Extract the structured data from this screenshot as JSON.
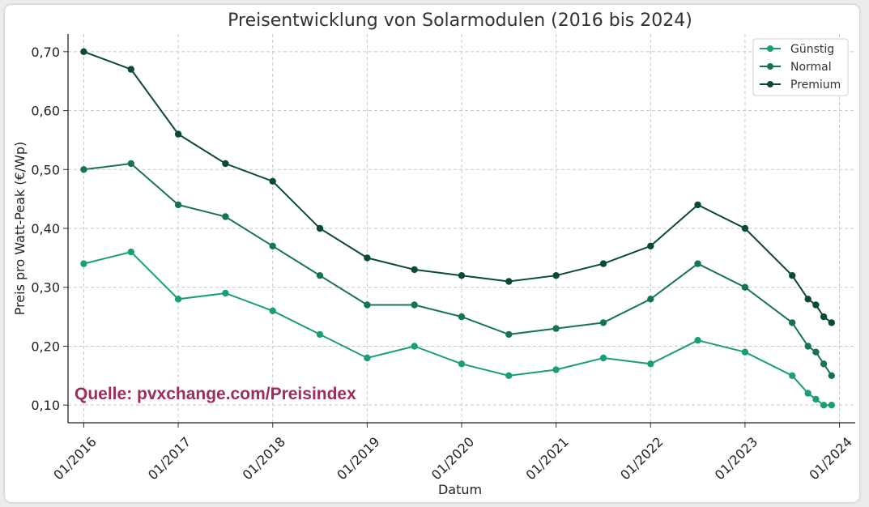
{
  "chart_data": {
    "type": "line",
    "title": "Preisentwicklung von Solarmodulen (2016 bis 2024)",
    "xlabel": "Datum",
    "ylabel": "Preis pro Watt-Peak (€/Wp)",
    "ylim": [
      0.07,
      0.73
    ],
    "yticks": [
      "0,10",
      "0,20",
      "0,30",
      "0,40",
      "0,50",
      "0,60",
      "0,70"
    ],
    "ytick_values": [
      0.1,
      0.2,
      0.3,
      0.4,
      0.5,
      0.6,
      0.7
    ],
    "xticks": [
      "01/2016",
      "01/2017",
      "01/2018",
      "01/2019",
      "01/2020",
      "01/2021",
      "01/2022",
      "01/2023",
      "01/2024"
    ],
    "xtick_values": [
      "2016-01",
      "2017-01",
      "2018-01",
      "2019-01",
      "2020-01",
      "2021-01",
      "2022-01",
      "2023-01",
      "2024-01"
    ],
    "xlim": [
      "2015-11",
      "2024-03"
    ],
    "x": [
      "2016-01",
      "2016-07",
      "2017-01",
      "2017-07",
      "2018-01",
      "2018-07",
      "2019-01",
      "2019-07",
      "2020-01",
      "2020-07",
      "2021-01",
      "2021-07",
      "2022-01",
      "2022-07",
      "2023-01",
      "2023-07",
      "2023-09",
      "2023-10",
      "2023-11",
      "2023-12"
    ],
    "series": [
      {
        "name": "Günstig",
        "color": "#1a9e7a",
        "values": [
          0.34,
          0.36,
          0.28,
          0.29,
          0.26,
          0.22,
          0.18,
          0.2,
          0.17,
          0.15,
          0.16,
          0.18,
          0.17,
          0.21,
          0.19,
          0.15,
          0.12,
          0.11,
          0.1,
          0.1
        ]
      },
      {
        "name": "Normal",
        "color": "#16735a",
        "values": [
          0.5,
          0.51,
          0.44,
          0.42,
          0.37,
          0.32,
          0.27,
          0.27,
          0.25,
          0.22,
          0.23,
          0.24,
          0.28,
          0.34,
          0.3,
          0.24,
          0.2,
          0.19,
          0.17,
          0.15
        ]
      },
      {
        "name": "Premium",
        "color": "#0b4a32",
        "values": [
          0.7,
          0.67,
          0.56,
          0.51,
          0.48,
          0.4,
          0.35,
          0.33,
          0.32,
          0.31,
          0.32,
          0.34,
          0.37,
          0.44,
          0.4,
          0.32,
          0.28,
          0.27,
          0.25,
          0.24
        ]
      }
    ],
    "grid": true,
    "legend_position": "top-right",
    "annotation": {
      "text": "Quelle: pvxchange.com/Preisindex",
      "color": "#9c2e5c"
    }
  }
}
